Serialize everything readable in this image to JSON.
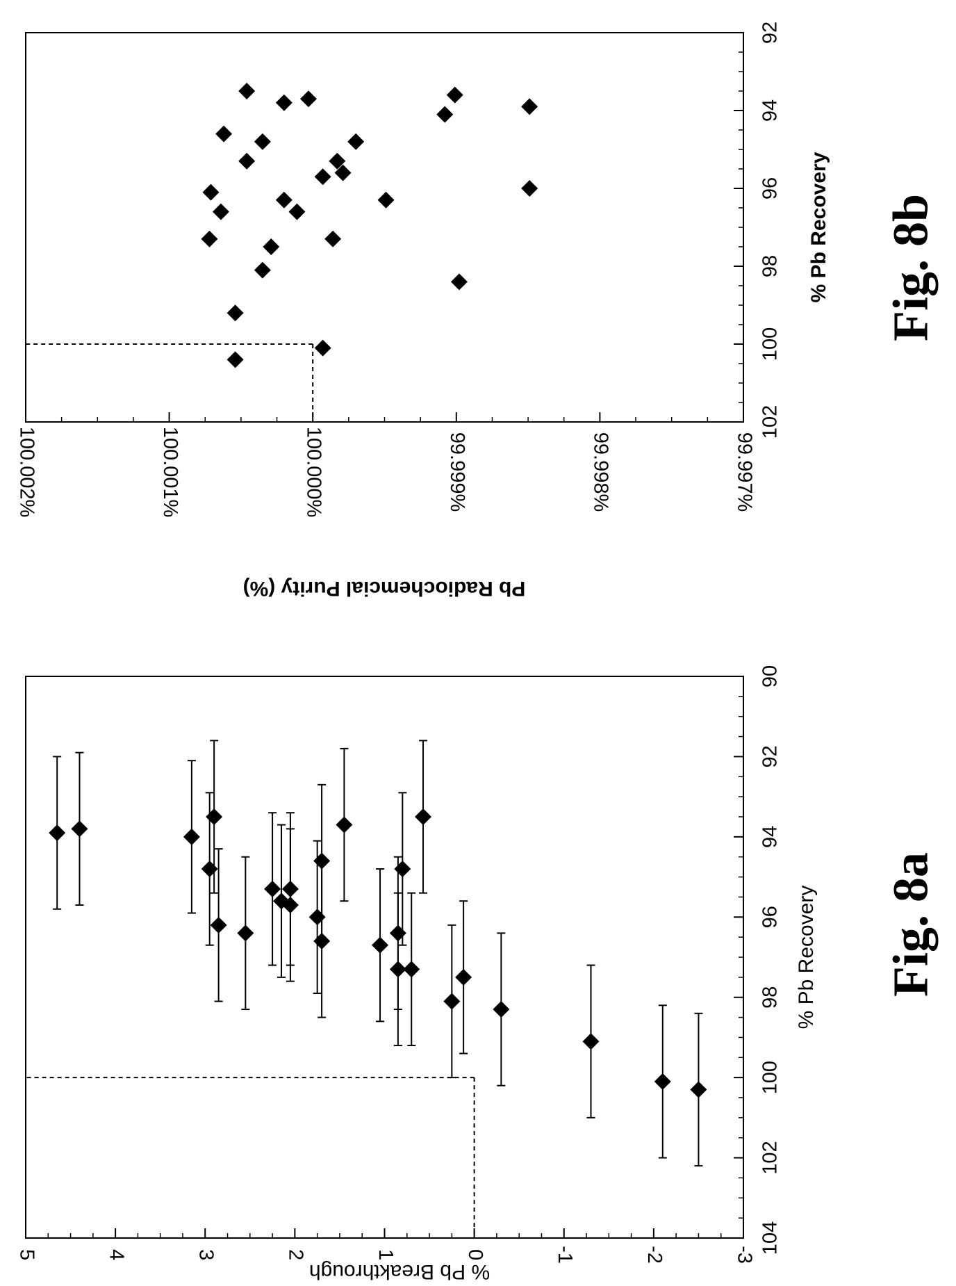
{
  "figure_labels": {
    "a": "Fig. 8a",
    "b": "Fig. 8b"
  },
  "chart_data": [
    {
      "id": "8a",
      "type": "scatter",
      "error_bars": true,
      "xlabel": "% Pb Recovery",
      "ylabel": "% Pb Breakthrough",
      "xlim": [
        90,
        104
      ],
      "ylim": [
        -3,
        5
      ],
      "x_ticks": [
        90,
        92,
        94,
        96,
        98,
        100,
        102,
        104
      ],
      "x_tick_labels": [
        "90",
        "92",
        "94",
        "96",
        "98",
        "100",
        "102",
        "104"
      ],
      "y_ticks": [
        5,
        4,
        3,
        2,
        1,
        0,
        -1,
        -2,
        -3
      ],
      "y_tick_labels": [
        "5",
        "4",
        "3",
        "2",
        "1",
        "0",
        "-1",
        "-2",
        "-3"
      ],
      "reference_lines": [
        {
          "axis": "x",
          "value": 100,
          "style": "dashed"
        },
        {
          "axis": "y",
          "value": 0,
          "style": "dashed"
        }
      ],
      "grid": false,
      "points": [
        {
          "x": 93.9,
          "y": 4.65,
          "xerr": 1.9
        },
        {
          "x": 93.8,
          "y": 4.4,
          "xerr": 1.9
        },
        {
          "x": 94.0,
          "y": 3.15,
          "xerr": 1.9
        },
        {
          "x": 94.8,
          "y": 2.95,
          "xerr": 1.9
        },
        {
          "x": 93.5,
          "y": 2.9,
          "xerr": 1.9
        },
        {
          "x": 96.2,
          "y": 2.85,
          "xerr": 1.9
        },
        {
          "x": 96.4,
          "y": 2.55,
          "xerr": 1.9
        },
        {
          "x": 95.3,
          "y": 2.25,
          "xerr": 1.9
        },
        {
          "x": 95.6,
          "y": 2.15,
          "xerr": 1.9
        },
        {
          "x": 95.7,
          "y": 2.05,
          "xerr": 1.9
        },
        {
          "x": 95.3,
          "y": 2.05,
          "xerr": 1.9
        },
        {
          "x": 96.0,
          "y": 1.75,
          "xerr": 1.9
        },
        {
          "x": 96.6,
          "y": 1.7,
          "xerr": 1.9
        },
        {
          "x": 94.6,
          "y": 1.7,
          "xerr": 1.9
        },
        {
          "x": 93.7,
          "y": 1.45,
          "xerr": 1.9
        },
        {
          "x": 96.7,
          "y": 1.05,
          "xerr": 1.9
        },
        {
          "x": 97.3,
          "y": 0.85,
          "xerr": 1.9
        },
        {
          "x": 96.4,
          "y": 0.85,
          "xerr": 1.9
        },
        {
          "x": 94.8,
          "y": 0.8,
          "xerr": 1.9
        },
        {
          "x": 97.3,
          "y": 0.7,
          "xerr": 1.9
        },
        {
          "x": 93.5,
          "y": 0.57,
          "xerr": 1.9
        },
        {
          "x": 98.1,
          "y": 0.25,
          "xerr": 1.9
        },
        {
          "x": 97.5,
          "y": 0.12,
          "xerr": 1.9
        },
        {
          "x": 98.3,
          "y": -0.3,
          "xerr": 1.9
        },
        {
          "x": 99.1,
          "y": -1.3,
          "xerr": 1.9
        },
        {
          "x": 100.1,
          "y": -2.1,
          "xerr": 1.9
        },
        {
          "x": 100.3,
          "y": -2.5,
          "xerr": 1.9
        }
      ]
    },
    {
      "id": "8b",
      "type": "scatter",
      "xlabel": "% Pb Recovery",
      "ylabel": "Pb Radiochemcial Purity (%)",
      "xlim": [
        92,
        102
      ],
      "ylim": [
        99.997,
        100.002
      ],
      "x_ticks": [
        92,
        94,
        96,
        98,
        100,
        102
      ],
      "x_tick_labels": [
        "92",
        "94",
        "96",
        "98",
        "100",
        "102"
      ],
      "y_ticks": [
        100.002,
        100.001,
        100.0,
        99.999,
        99.998,
        99.997
      ],
      "y_tick_labels": [
        "100.002%",
        "100.001%",
        "100.000%",
        "99.999%",
        "99.998%",
        "99.997%"
      ],
      "reference_lines": [
        {
          "axis": "x",
          "value": 100,
          "style": "dashed"
        },
        {
          "axis": "y",
          "value": 100.0,
          "style": "dashed"
        }
      ],
      "grid": false,
      "points": [
        {
          "x": 100.4,
          "y": 100.00054
        },
        {
          "x": 100.1,
          "y": 99.99993
        },
        {
          "x": 99.2,
          "y": 100.00054
        },
        {
          "x": 98.4,
          "y": 99.99898
        },
        {
          "x": 98.1,
          "y": 100.00035
        },
        {
          "x": 97.5,
          "y": 100.00029
        },
        {
          "x": 97.3,
          "y": 100.00072
        },
        {
          "x": 97.3,
          "y": 99.99986
        },
        {
          "x": 96.6,
          "y": 100.00064
        },
        {
          "x": 96.6,
          "y": 100.00011
        },
        {
          "x": 96.3,
          "y": 100.0002
        },
        {
          "x": 96.3,
          "y": 99.99949
        },
        {
          "x": 96.1,
          "y": 100.00071
        },
        {
          "x": 96.0,
          "y": 99.99849
        },
        {
          "x": 95.7,
          "y": 99.99993
        },
        {
          "x": 95.6,
          "y": 99.99979
        },
        {
          "x": 95.3,
          "y": 100.00046
        },
        {
          "x": 95.3,
          "y": 99.99983
        },
        {
          "x": 94.8,
          "y": 100.00035
        },
        {
          "x": 94.8,
          "y": 99.9997
        },
        {
          "x": 94.6,
          "y": 100.00062
        },
        {
          "x": 94.1,
          "y": 99.99908
        },
        {
          "x": 93.9,
          "y": 99.99849
        },
        {
          "x": 93.8,
          "y": 100.0002
        },
        {
          "x": 93.7,
          "y": 100.00003
        },
        {
          "x": 93.6,
          "y": 99.99901
        },
        {
          "x": 93.5,
          "y": 100.00046
        }
      ]
    }
  ]
}
